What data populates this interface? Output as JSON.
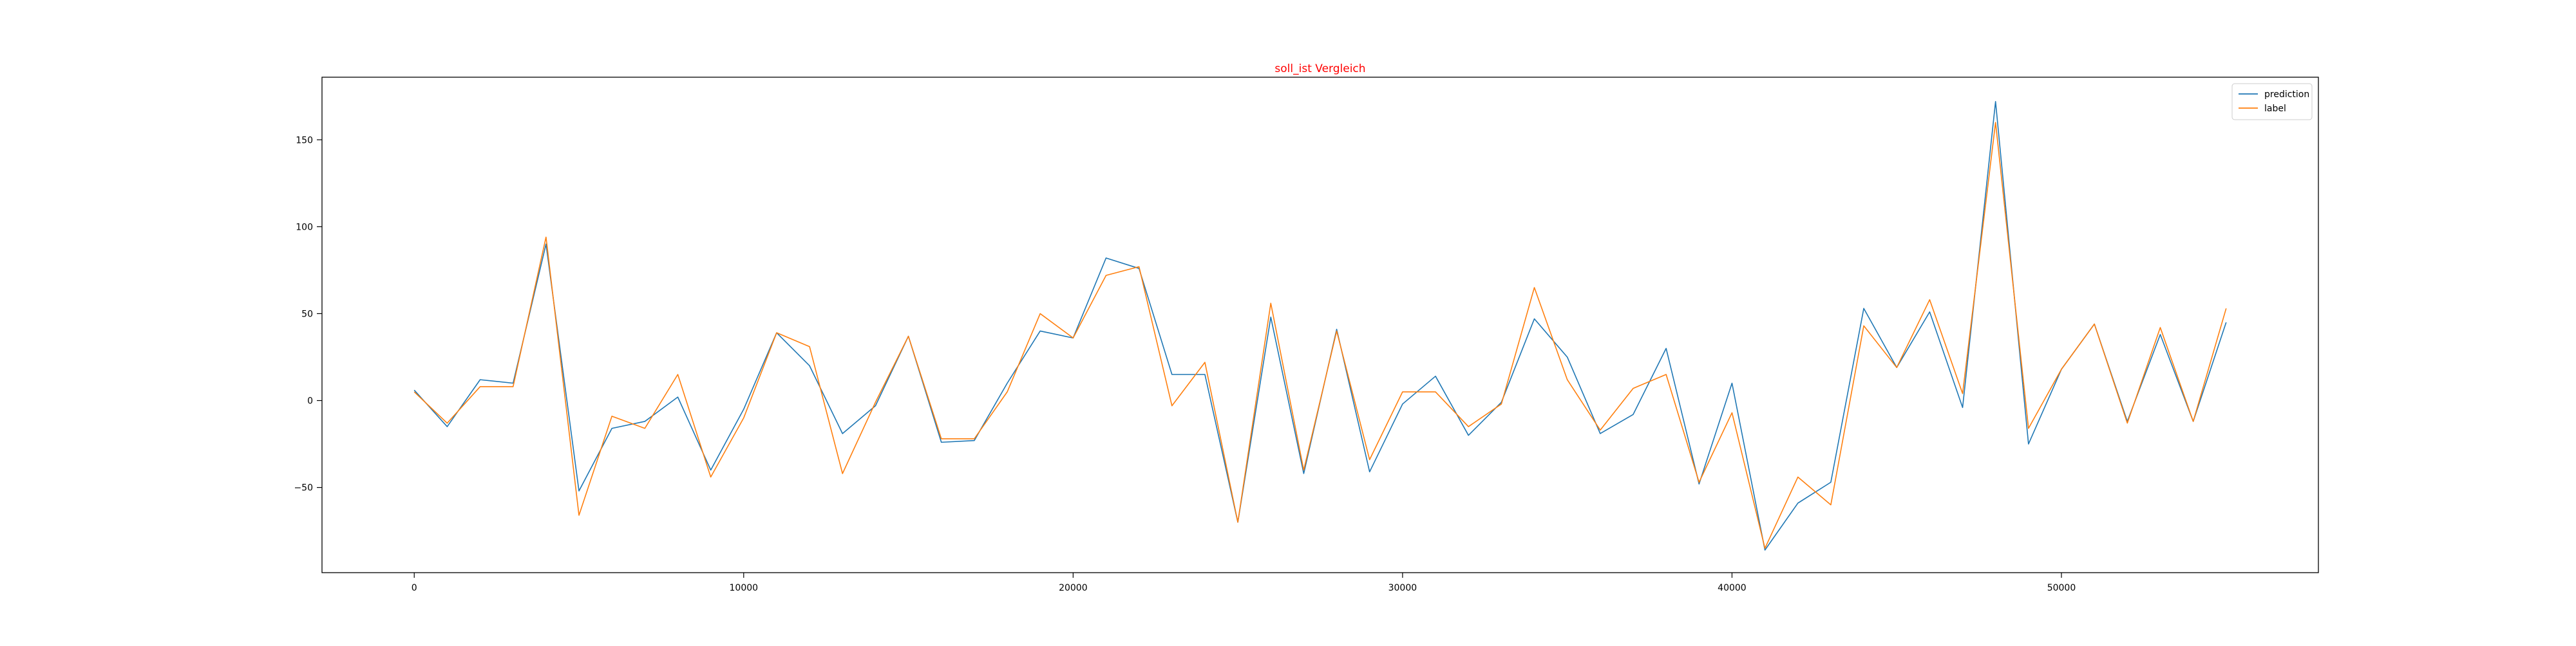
{
  "chart_data": {
    "type": "line",
    "title": "soll_ist Vergleich",
    "title_color": "#ff0000",
    "xlabel": "",
    "ylabel": "",
    "xlim": [
      -2800,
      57800
    ],
    "ylim": [
      -99,
      186
    ],
    "xticks": [
      0,
      10000,
      20000,
      30000,
      40000,
      50000
    ],
    "yticks": [
      -50,
      0,
      50,
      100,
      150
    ],
    "grid": false,
    "legend_position": "top-right",
    "x": [
      0,
      1000,
      2000,
      3000,
      4000,
      5000,
      6000,
      7000,
      8000,
      9000,
      10000,
      11000,
      12000,
      13000,
      14000,
      15000,
      16000,
      17000,
      18000,
      19000,
      20000,
      21000,
      22000,
      23000,
      24000,
      25000,
      26000,
      27000,
      28000,
      29000,
      30000,
      31000,
      32000,
      33000,
      34000,
      35000,
      36000,
      37000,
      38000,
      39000,
      40000,
      41000,
      42000,
      43000,
      44000,
      45000,
      46000,
      47000,
      48000,
      49000,
      50000,
      51000,
      52000,
      53000,
      54000,
      55000
    ],
    "series": [
      {
        "name": "prediction",
        "color": "#1f77b4",
        "values": [
          6,
          -15,
          12,
          10,
          90,
          -52,
          -16,
          -12,
          2,
          -40,
          -5,
          39,
          20,
          -19,
          -3,
          37,
          -24,
          -23,
          10,
          40,
          36,
          82,
          76,
          15,
          15,
          -70,
          48,
          -42,
          41,
          -41,
          -2,
          14,
          -20,
          -1,
          47,
          25,
          -19,
          -8,
          30,
          -48,
          10,
          -86,
          -59,
          -47,
          53,
          19,
          51,
          -4,
          172,
          -25,
          18,
          44,
          -12,
          38,
          -12,
          45
        ]
      },
      {
        "name": "label",
        "color": "#ff7f0e",
        "values": [
          5,
          -13,
          8,
          8,
          94,
          -66,
          -9,
          -16,
          15,
          -44,
          -10,
          39,
          31,
          -42,
          -1,
          37,
          -22,
          -22,
          5,
          50,
          36,
          72,
          77,
          -3,
          22,
          -70,
          56,
          -40,
          40,
          -34,
          5,
          5,
          -15,
          -2,
          65,
          12,
          -17,
          7,
          15,
          -47,
          -7,
          -85,
          -44,
          -60,
          43,
          19,
          58,
          4,
          160,
          -16,
          18,
          44,
          -13,
          42,
          -12,
          53
        ]
      }
    ]
  }
}
